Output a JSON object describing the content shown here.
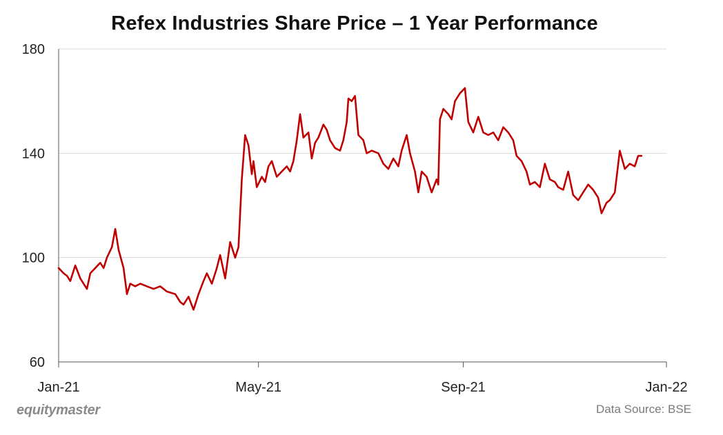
{
  "title": "Refex Industries Share Price – 1 Year Performance",
  "brand": "equitymaster",
  "source": "Data Source: BSE",
  "colors": {
    "line": "#c00000",
    "grid": "#d9d9d9",
    "axis": "#555555"
  },
  "chart_data": {
    "type": "line",
    "title": "Refex Industries Share Price – 1 Year Performance",
    "xlabel": "",
    "ylabel": "",
    "ylim": [
      60,
      180
    ],
    "yticks": [
      60,
      100,
      140,
      180
    ],
    "xticks": [
      {
        "x": "2021-01-01",
        "label": "Jan-21"
      },
      {
        "x": "2021-05-01",
        "label": "May-21"
      },
      {
        "x": "2021-09-01",
        "label": "Sep-21"
      },
      {
        "x": "2022-01-01",
        "label": "Jan-22"
      }
    ],
    "xlim": [
      "2021-01-01",
      "2022-01-01"
    ],
    "grid": "horizontal",
    "series": [
      {
        "name": "",
        "points": [
          [
            "2021-01-01",
            96
          ],
          [
            "2021-01-04",
            94
          ],
          [
            "2021-01-06",
            93
          ],
          [
            "2021-01-08",
            91
          ],
          [
            "2021-01-11",
            97
          ],
          [
            "2021-01-14",
            92
          ],
          [
            "2021-01-18",
            88
          ],
          [
            "2021-01-20",
            94
          ],
          [
            "2021-01-23",
            96
          ],
          [
            "2021-01-26",
            98
          ],
          [
            "2021-01-28",
            96
          ],
          [
            "2021-01-30",
            100
          ],
          [
            "2021-02-02",
            104
          ],
          [
            "2021-02-04",
            111
          ],
          [
            "2021-02-06",
            103
          ],
          [
            "2021-02-09",
            96
          ],
          [
            "2021-02-11",
            86
          ],
          [
            "2021-02-13",
            90
          ],
          [
            "2021-02-16",
            89
          ],
          [
            "2021-02-19",
            90
          ],
          [
            "2021-02-23",
            89
          ],
          [
            "2021-02-27",
            88
          ],
          [
            "2021-03-03",
            89
          ],
          [
            "2021-03-07",
            87
          ],
          [
            "2021-03-12",
            86
          ],
          [
            "2021-03-15",
            83
          ],
          [
            "2021-03-17",
            82
          ],
          [
            "2021-03-20",
            85
          ],
          [
            "2021-03-23",
            80
          ],
          [
            "2021-03-26",
            86
          ],
          [
            "2021-03-29",
            91
          ],
          [
            "2021-03-31",
            94
          ],
          [
            "2021-04-03",
            90
          ],
          [
            "2021-04-06",
            96
          ],
          [
            "2021-04-08",
            101
          ],
          [
            "2021-04-11",
            92
          ],
          [
            "2021-04-14",
            106
          ],
          [
            "2021-04-17",
            100
          ],
          [
            "2021-04-19",
            104
          ],
          [
            "2021-04-21",
            130
          ],
          [
            "2021-04-23",
            147
          ],
          [
            "2021-04-25",
            143
          ],
          [
            "2021-04-27",
            132
          ],
          [
            "2021-04-28",
            137
          ],
          [
            "2021-04-30",
            127
          ],
          [
            "2021-05-03",
            131
          ],
          [
            "2021-05-05",
            129
          ],
          [
            "2021-05-07",
            135
          ],
          [
            "2021-05-09",
            137
          ],
          [
            "2021-05-12",
            131
          ],
          [
            "2021-05-15",
            133
          ],
          [
            "2021-05-18",
            135
          ],
          [
            "2021-05-20",
            133
          ],
          [
            "2021-05-22",
            137
          ],
          [
            "2021-05-24",
            145
          ],
          [
            "2021-05-26",
            155
          ],
          [
            "2021-05-28",
            146
          ],
          [
            "2021-05-31",
            148
          ],
          [
            "2021-06-02",
            138
          ],
          [
            "2021-06-04",
            144
          ],
          [
            "2021-06-06",
            146
          ],
          [
            "2021-06-09",
            151
          ],
          [
            "2021-06-11",
            149
          ],
          [
            "2021-06-13",
            145
          ],
          [
            "2021-06-16",
            142
          ],
          [
            "2021-06-19",
            141
          ],
          [
            "2021-06-21",
            145
          ],
          [
            "2021-06-23",
            152
          ],
          [
            "2021-06-24",
            161
          ],
          [
            "2021-06-26",
            160
          ],
          [
            "2021-06-28",
            162
          ],
          [
            "2021-06-30",
            147
          ],
          [
            "2021-07-03",
            145
          ],
          [
            "2021-07-05",
            140
          ],
          [
            "2021-07-08",
            141
          ],
          [
            "2021-07-12",
            140
          ],
          [
            "2021-07-15",
            136
          ],
          [
            "2021-07-18",
            134
          ],
          [
            "2021-07-21",
            138
          ],
          [
            "2021-07-24",
            135
          ],
          [
            "2021-07-26",
            141
          ],
          [
            "2021-07-29",
            147
          ],
          [
            "2021-07-31",
            140
          ],
          [
            "2021-08-03",
            133
          ],
          [
            "2021-08-05",
            125
          ],
          [
            "2021-08-07",
            133
          ],
          [
            "2021-08-10",
            131
          ],
          [
            "2021-08-13",
            125
          ],
          [
            "2021-08-16",
            130
          ],
          [
            "2021-08-17",
            128
          ],
          [
            "2021-08-18",
            153
          ],
          [
            "2021-08-20",
            157
          ],
          [
            "2021-08-23",
            155
          ],
          [
            "2021-08-25",
            153
          ],
          [
            "2021-08-27",
            160
          ],
          [
            "2021-08-30",
            163
          ],
          [
            "2021-09-02",
            165
          ],
          [
            "2021-09-04",
            152
          ],
          [
            "2021-09-07",
            148
          ],
          [
            "2021-09-10",
            154
          ],
          [
            "2021-09-13",
            148
          ],
          [
            "2021-09-16",
            147
          ],
          [
            "2021-09-19",
            148
          ],
          [
            "2021-09-22",
            145
          ],
          [
            "2021-09-25",
            150
          ],
          [
            "2021-09-28",
            148
          ],
          [
            "2021-10-01",
            145
          ],
          [
            "2021-10-03",
            139
          ],
          [
            "2021-10-06",
            137
          ],
          [
            "2021-10-09",
            133
          ],
          [
            "2021-10-11",
            128
          ],
          [
            "2021-10-14",
            129
          ],
          [
            "2021-10-17",
            127
          ],
          [
            "2021-10-20",
            136
          ],
          [
            "2021-10-23",
            130
          ],
          [
            "2021-10-26",
            129
          ],
          [
            "2021-10-28",
            127
          ],
          [
            "2021-10-31",
            126
          ],
          [
            "2021-11-03",
            133
          ],
          [
            "2021-11-06",
            124
          ],
          [
            "2021-11-09",
            122
          ],
          [
            "2021-11-12",
            125
          ],
          [
            "2021-11-15",
            128
          ],
          [
            "2021-11-18",
            126
          ],
          [
            "2021-11-21",
            123
          ],
          [
            "2021-11-23",
            117
          ],
          [
            "2021-11-26",
            121
          ],
          [
            "2021-11-28",
            122
          ],
          [
            "2021-12-01",
            125
          ],
          [
            "2021-12-04",
            141
          ],
          [
            "2021-12-07",
            134
          ],
          [
            "2021-12-10",
            136
          ],
          [
            "2021-12-13",
            135
          ],
          [
            "2021-12-15",
            139
          ],
          [
            "2021-12-17",
            139
          ]
        ]
      }
    ]
  }
}
